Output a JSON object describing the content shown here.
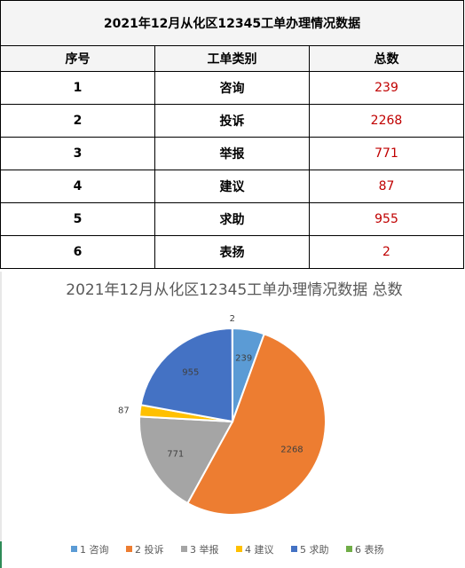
{
  "table": {
    "title": "2021年12月从化区12345工单办理情况数据",
    "headers": [
      "序号",
      "工单类别",
      "总数"
    ],
    "rows": [
      {
        "no": "1",
        "type": "咨询",
        "count": "239"
      },
      {
        "no": "2",
        "type": "投诉",
        "count": "2268"
      },
      {
        "no": "3",
        "type": "举报",
        "count": "771"
      },
      {
        "no": "4",
        "type": "建议",
        "count": "87"
      },
      {
        "no": "5",
        "type": "求助",
        "count": "955"
      },
      {
        "no": "6",
        "type": "表扬",
        "count": "2"
      }
    ]
  },
  "chart_data": {
    "type": "pie",
    "title": "2021年12月从化区12345工单办理情况数据 总数",
    "categories": [
      "1 咨询",
      "2 投诉",
      "3 举报",
      "4 建议",
      "5 求助",
      "6 表扬"
    ],
    "values": [
      239,
      2268,
      771,
      87,
      955,
      2
    ],
    "colors": [
      "#5b9bd5",
      "#ed7d31",
      "#a5a5a5",
      "#ffc000",
      "#4472c4",
      "#70ad47"
    ],
    "legend_position": "bottom",
    "data_labels": true
  }
}
